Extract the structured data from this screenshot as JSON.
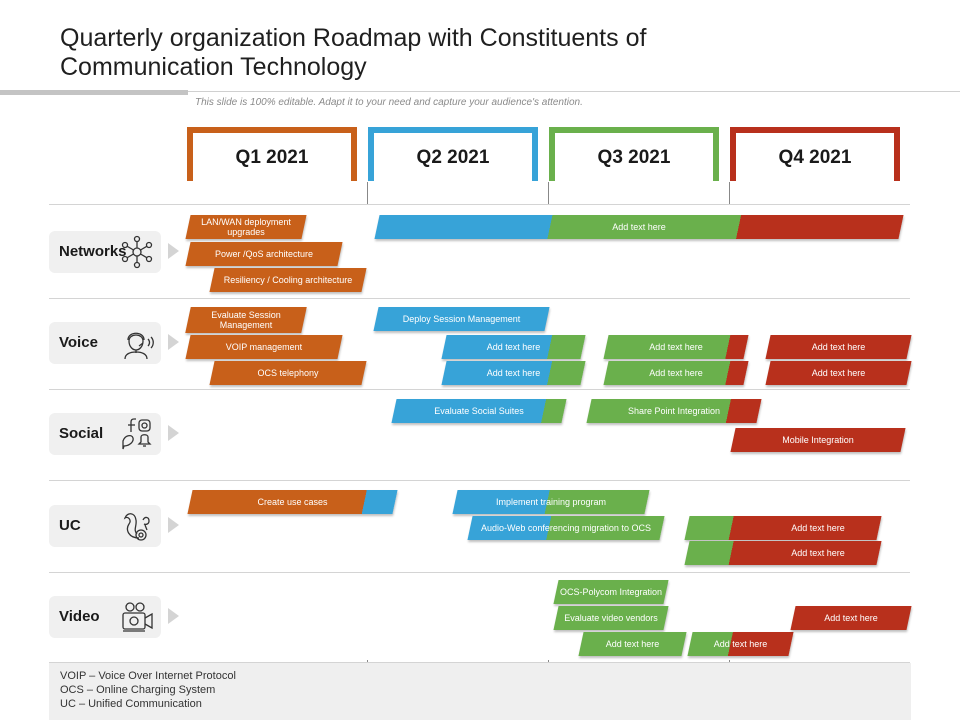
{
  "title": "Quarterly organization Roadmap with Constituents of Communication Technology",
  "subtitle": "This slide is 100% editable. Adapt it to your need and capture your audience's attention.",
  "colors": {
    "q1": "#c8601a",
    "q2": "#37a3d8",
    "q3": "#6ab04c",
    "q4": "#b8301c"
  },
  "quarters": [
    "Q1 2021",
    "Q2 2021",
    "Q3 2021",
    "Q4 2021"
  ],
  "rows": [
    {
      "label": "Networks",
      "icon": "network-nodes-icon"
    },
    {
      "label": "Voice",
      "icon": "person-headset-icon"
    },
    {
      "label": "Social",
      "icon": "social-media-icon"
    },
    {
      "label": "UC",
      "icon": "squirrel-icon"
    },
    {
      "label": "Video",
      "icon": "video-camera-person-icon"
    }
  ],
  "bars": {
    "networks": {
      "lan_wan": "LAN/WAN deployment upgrades",
      "power_qos": "Power /QoS architecture",
      "resiliency": "Resiliency / Cooling architecture",
      "add_text": "Add text here"
    },
    "voice": {
      "evaluate_session": "Evaluate Session Management",
      "voip": "VOIP management",
      "ocs_telephony": "OCS telephony",
      "deploy_session": "Deploy Session Management",
      "q2_a": "Add text here",
      "q2_b": "Add text here",
      "q3_a": "Add text here",
      "q3_b": "Add text here",
      "q4_a": "Add text here",
      "q4_b": "Add text here"
    },
    "social": {
      "evaluate_suites": "Evaluate Social Suites",
      "sharepoint": "Share Point Integration",
      "mobile": "Mobile Integration"
    },
    "uc": {
      "use_cases": "Create use cases",
      "training": "Implement training program",
      "audio_web": "Audio-Web conferencing migration to OCS",
      "q4_a": "Add text here",
      "q4_b": "Add text here"
    },
    "video": {
      "ocs_polycom": "OCS-Polycom Integration",
      "evaluate_vendors": "Evaluate video vendors",
      "q3_add": "Add text here",
      "q3q4_add": "Add text here",
      "q4_add": "Add text here"
    }
  },
  "footer": [
    "VOIP – Voice Over Internet Protocol",
    "OCS – Online Charging System",
    "UC – Unified Communication"
  ]
}
